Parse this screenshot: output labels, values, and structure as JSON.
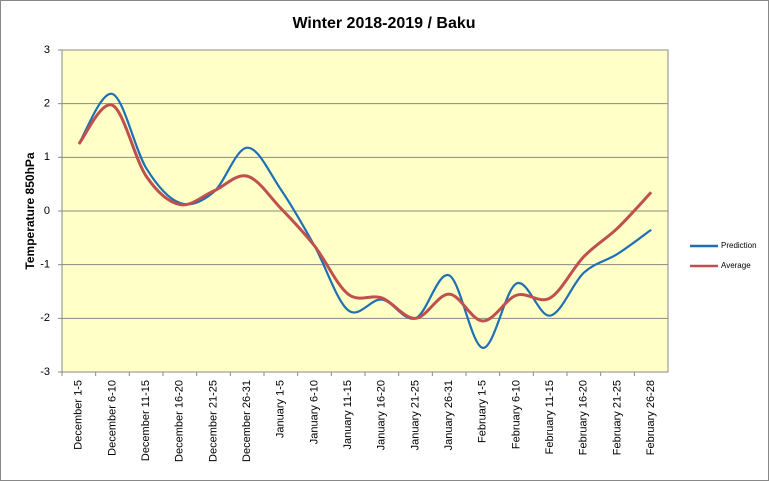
{
  "chart_data": {
    "type": "line",
    "title": "Winter 2018-2019 / Baku",
    "y_label": "Temperature 850hPa",
    "categories": [
      "December 1-5",
      "December 6-10",
      "December 11-15",
      "December 16-20",
      "December 21-25",
      "December 26-31",
      "January 1-5",
      "January 6-10",
      "January 11-15",
      "January 16-20",
      "January 21-25",
      "January 26-31",
      "February 1-5",
      "February 6-10",
      "February 11-15",
      "February 16-20",
      "February 21-25",
      "February 26-28"
    ],
    "series": [
      {
        "name": "Prediction",
        "color": "#1f6fb4",
        "values": [
          1.25,
          2.18,
          0.8,
          0.15,
          0.35,
          1.18,
          0.4,
          -0.65,
          -1.85,
          -1.65,
          -2.0,
          -1.2,
          -2.55,
          -1.35,
          -1.95,
          -1.15,
          -0.8,
          -0.35
        ]
      },
      {
        "name": "Average",
        "color": "#c0504d",
        "values": [
          1.25,
          1.97,
          0.65,
          0.12,
          0.37,
          0.65,
          0.05,
          -0.65,
          -1.55,
          -1.62,
          -2.0,
          -1.55,
          -2.05,
          -1.57,
          -1.62,
          -0.85,
          -0.32,
          0.35
        ]
      }
    ],
    "ylim": [
      -3,
      3
    ],
    "yticks": [
      -3,
      -2,
      -1,
      0,
      1,
      2,
      3
    ],
    "grid": true,
    "smooth": true,
    "legend": "right"
  }
}
